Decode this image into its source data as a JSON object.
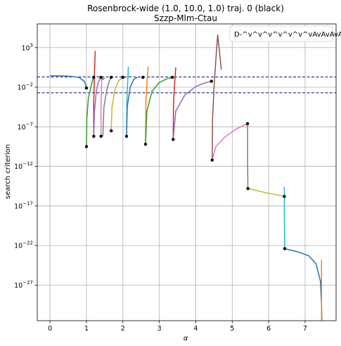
{
  "chart_data": {
    "type": "line",
    "title": "Rosenbrock-wide (1.0, 10.0, 1.0) traj. 0 (black)",
    "subtitle": "Szzp-Mlm-Ctau",
    "xlabel": "α",
    "ylabel": "search criterion",
    "xlim": [
      -0.35,
      7.85
    ],
    "ylim_log10": [
      -31.5,
      6.0
    ],
    "yscale": "log",
    "grid": true,
    "legend": {
      "text": "D-^v^v^v^v^v^v^vAvAvAvAv",
      "placement": "top-right"
    },
    "x_ticks": [
      {
        "value": 0,
        "label": "0"
      },
      {
        "value": 1,
        "label": "1"
      },
      {
        "value": 2,
        "label": "2"
      },
      {
        "value": 3,
        "label": "3"
      },
      {
        "value": 4,
        "label": "4"
      },
      {
        "value": 5,
        "label": "5"
      },
      {
        "value": 6,
        "label": "6"
      },
      {
        "value": 7,
        "label": "7"
      }
    ],
    "y_ticks": [
      {
        "exp": 3,
        "label": "10",
        "sup": "3"
      },
      {
        "exp": -2,
        "label": "10",
        "sup": "−2"
      },
      {
        "exp": -7,
        "label": "10",
        "sup": "−7"
      },
      {
        "exp": -12,
        "label": "10",
        "sup": "−12"
      },
      {
        "exp": -17,
        "label": "10",
        "sup": "−17"
      },
      {
        "exp": -22,
        "label": "10",
        "sup": "−22"
      },
      {
        "exp": -27,
        "label": "10",
        "sup": "−27"
      }
    ],
    "hlines": [
      {
        "log10_y": -0.7,
        "color": "#00008b",
        "style": "dashed"
      },
      {
        "log10_y": -2.7,
        "color": "#00008b",
        "style": "dashed"
      }
    ],
    "series": [
      {
        "color": "#1f77b4",
        "points": [
          [
            0,
            -0.55
          ],
          [
            0.2,
            -0.55
          ],
          [
            0.5,
            -0.6
          ],
          [
            0.8,
            -0.75
          ],
          [
            0.95,
            -1.3
          ],
          [
            1.0,
            -2.1
          ]
        ]
      },
      {
        "color": "#2ca02c",
        "points": [
          [
            1.0,
            -9.5
          ],
          [
            1.01,
            -6.0
          ],
          [
            1.05,
            -3.5
          ],
          [
            1.1,
            -2.4
          ],
          [
            1.15,
            -1.4
          ],
          [
            1.2,
            -0.75
          ]
        ]
      },
      {
        "color": "#d62728",
        "points": [
          [
            1.2,
            -8.2
          ],
          [
            1.2,
            -4.0
          ],
          [
            1.21,
            -2.0
          ],
          [
            1.22,
            0.0
          ],
          [
            1.24,
            2.6
          ]
        ]
      },
      {
        "color": "#9467bd",
        "points": [
          [
            1.2,
            -8.2
          ],
          [
            1.22,
            -5.0
          ],
          [
            1.27,
            -2.5
          ],
          [
            1.33,
            -1.3
          ],
          [
            1.4,
            -0.75
          ]
        ]
      },
      {
        "color": "#8c564b",
        "points": [
          [
            1.4,
            -0.75
          ],
          [
            1.45,
            -1.0
          ],
          [
            1.5,
            -0.8
          ]
        ]
      },
      {
        "color": "#e377c2",
        "points": [
          [
            1.4,
            -8.2
          ],
          [
            1.4,
            -4.0
          ],
          [
            1.41,
            -2.5
          ],
          [
            1.42,
            -0.75
          ]
        ]
      },
      {
        "color": "#7f7f7f",
        "points": [
          [
            1.45,
            -8.2
          ],
          [
            1.48,
            -4.5
          ],
          [
            1.55,
            -2.5
          ],
          [
            1.62,
            -1.3
          ],
          [
            1.68,
            -0.75
          ]
        ]
      },
      {
        "color": "#bcbd22",
        "points": [
          [
            1.68,
            -7.5
          ],
          [
            1.7,
            -4.5
          ],
          [
            1.78,
            -2.3
          ],
          [
            1.88,
            -1.2
          ],
          [
            2.0,
            -0.75
          ]
        ]
      },
      {
        "color": "#17becf",
        "points": [
          [
            2.1,
            -8.2
          ],
          [
            2.11,
            -4.0
          ],
          [
            2.13,
            -1.5
          ],
          [
            2.15,
            0.6
          ]
        ]
      },
      {
        "color": "#1f77b4",
        "points": [
          [
            2.1,
            -8.2
          ],
          [
            2.12,
            -4.5
          ],
          [
            2.2,
            -2.0
          ],
          [
            2.3,
            -1.0
          ],
          [
            2.4,
            -0.75
          ]
        ]
      },
      {
        "color": "#ff7f0e",
        "points": [
          [
            2.62,
            -9.2
          ],
          [
            2.63,
            -4.0
          ],
          [
            2.66,
            -1.5
          ],
          [
            2.69,
            0.6
          ]
        ]
      },
      {
        "color": "#2ca02c",
        "points": [
          [
            2.62,
            -9.2
          ],
          [
            2.66,
            -5.0
          ],
          [
            2.8,
            -2.5
          ],
          [
            3.0,
            -1.4
          ],
          [
            3.2,
            -0.95
          ],
          [
            3.36,
            -0.75
          ]
        ]
      },
      {
        "color": "#d62728",
        "points": [
          [
            3.38,
            -8.6
          ],
          [
            3.39,
            -4.0
          ],
          [
            3.42,
            -1.5
          ],
          [
            3.45,
            0.5
          ]
        ]
      },
      {
        "color": "#9467bd",
        "points": [
          [
            3.38,
            -8.6
          ],
          [
            3.45,
            -5.0
          ],
          [
            3.7,
            -3.0
          ],
          [
            4.0,
            -1.9
          ],
          [
            4.25,
            -1.45
          ],
          [
            4.43,
            -1.25
          ]
        ]
      },
      {
        "color": "#8c564b",
        "points": [
          [
            4.45,
            -11.2
          ],
          [
            4.46,
            -6.0
          ],
          [
            4.5,
            -2.0
          ],
          [
            4.55,
            1.5
          ],
          [
            4.6,
            4.6
          ],
          [
            4.65,
            2.6
          ],
          [
            4.7,
            0.2
          ]
        ]
      },
      {
        "color": "#e377c2",
        "points": [
          [
            4.45,
            -11.2
          ],
          [
            4.55,
            -9.5
          ],
          [
            4.8,
            -8.3
          ],
          [
            5.1,
            -7.3
          ],
          [
            5.42,
            -6.6
          ]
        ]
      },
      {
        "color": "#7f7f7f",
        "points": [
          [
            5.42,
            -6.4
          ],
          [
            5.42,
            -11.0
          ],
          [
            5.43,
            -14.8
          ]
        ]
      },
      {
        "color": "#bcbd22",
        "points": [
          [
            5.43,
            -14.8
          ],
          [
            5.9,
            -15.3
          ],
          [
            6.43,
            -15.8
          ]
        ]
      },
      {
        "color": "#17becf",
        "points": [
          [
            6.43,
            -14.6
          ],
          [
            6.43,
            -18.0
          ],
          [
            6.44,
            -22.4
          ]
        ]
      },
      {
        "color": "#1f77b4",
        "points": [
          [
            6.44,
            -22.4
          ],
          [
            6.8,
            -22.8
          ],
          [
            7.1,
            -23.3
          ],
          [
            7.3,
            -24.3
          ],
          [
            7.42,
            -26.5
          ],
          [
            7.45,
            -29.5
          ],
          [
            7.46,
            -31.5
          ]
        ]
      },
      {
        "color": "#ff7f0e",
        "points": [
          [
            7.45,
            -23.8
          ],
          [
            7.45,
            -26.0
          ],
          [
            7.45,
            -31.5
          ]
        ]
      }
    ],
    "markers": [
      [
        1.0,
        -2.1
      ],
      [
        1.0,
        -9.5
      ],
      [
        1.2,
        -8.2
      ],
      [
        1.2,
        -0.75
      ],
      [
        1.4,
        -0.75
      ],
      [
        1.4,
        -8.2
      ],
      [
        1.68,
        -7.5
      ],
      [
        1.68,
        -0.75
      ],
      [
        2.1,
        -8.2
      ],
      [
        2.0,
        -0.75
      ],
      [
        2.62,
        -9.2
      ],
      [
        2.55,
        -0.75
      ],
      [
        3.38,
        -8.6
      ],
      [
        3.36,
        -0.75
      ],
      [
        4.45,
        -11.2
      ],
      [
        4.43,
        -1.25
      ],
      [
        5.42,
        -6.6
      ],
      [
        5.43,
        -14.8
      ],
      [
        6.43,
        -15.8
      ],
      [
        6.44,
        -22.4
      ]
    ]
  }
}
